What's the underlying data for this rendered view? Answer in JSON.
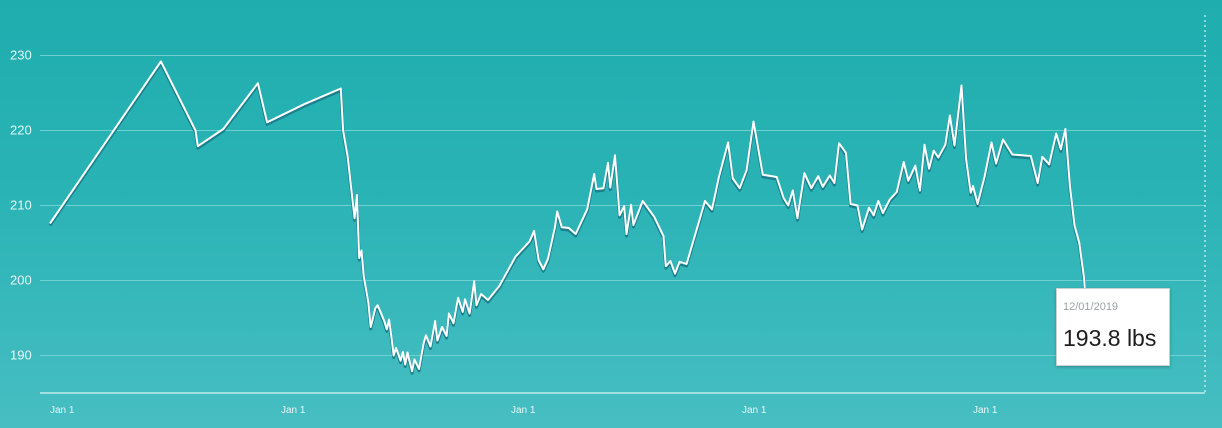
{
  "colors": {
    "background_top": "#1fadae",
    "background_bottom": "#47bec2",
    "line": "#ffffff",
    "min_band": "#1b7f8e",
    "grid": "#6fd0d2"
  },
  "tooltip": {
    "date": "12/01/2019",
    "value": "193.8 lbs"
  },
  "chart_data": {
    "type": "line",
    "title": "",
    "xlabel": "",
    "ylabel": "",
    "unit": "lbs",
    "ylim": [
      186,
      233
    ],
    "yticks": [
      190,
      200,
      210,
      220,
      230
    ],
    "x_tick_labels": [
      "Jan 1",
      "Jan 1",
      "Jan 1",
      "Jan 1",
      "Jan 1"
    ],
    "x_ticks": [
      2015,
      2016,
      2017,
      2018,
      2019
    ],
    "xlim": [
      2015,
      2019.95
    ],
    "grid": true,
    "legend": "none",
    "highlight": {
      "date": "12/01/2019",
      "value": 193.8
    },
    "series": [
      {
        "values": [
          [
            2015.0,
            207.6
          ],
          [
            2015.48,
            229.2
          ],
          [
            2015.63,
            220.0
          ],
          [
            2015.64,
            217.9
          ],
          [
            2015.75,
            220.2
          ],
          [
            2015.9,
            226.3
          ],
          [
            2015.94,
            221.1
          ],
          [
            2016.1,
            223.5
          ],
          [
            2016.26,
            225.6
          ],
          [
            2016.27,
            220.0
          ],
          [
            2016.29,
            216.5
          ],
          [
            2016.31,
            211.0
          ],
          [
            2016.32,
            208.3
          ],
          [
            2016.33,
            211.4
          ],
          [
            2016.34,
            203.0
          ],
          [
            2016.35,
            204.0
          ],
          [
            2016.36,
            200.5
          ],
          [
            2016.37,
            198.8
          ],
          [
            2016.38,
            197.0
          ],
          [
            2016.39,
            193.8
          ],
          [
            2016.4,
            195.0
          ],
          [
            2016.41,
            196.3
          ],
          [
            2016.42,
            196.7
          ],
          [
            2016.43,
            196.0
          ],
          [
            2016.45,
            194.5
          ],
          [
            2016.46,
            193.5
          ],
          [
            2016.47,
            194.8
          ],
          [
            2016.48,
            192.5
          ],
          [
            2016.49,
            190.0
          ],
          [
            2016.5,
            191.0
          ],
          [
            2016.52,
            189.3
          ],
          [
            2016.53,
            190.5
          ],
          [
            2016.54,
            188.8
          ],
          [
            2016.55,
            190.4
          ],
          [
            2016.56,
            189.1
          ],
          [
            2016.57,
            187.9
          ],
          [
            2016.58,
            189.5
          ],
          [
            2016.6,
            188.2
          ],
          [
            2016.62,
            191.6
          ],
          [
            2016.63,
            192.7
          ],
          [
            2016.65,
            191.2
          ],
          [
            2016.67,
            194.6
          ],
          [
            2016.68,
            192.0
          ],
          [
            2016.7,
            193.8
          ],
          [
            2016.72,
            192.6
          ],
          [
            2016.73,
            195.6
          ],
          [
            2016.75,
            194.3
          ],
          [
            2016.77,
            197.7
          ],
          [
            2016.79,
            195.8
          ],
          [
            2016.8,
            197.5
          ],
          [
            2016.82,
            195.6
          ],
          [
            2016.84,
            199.9
          ],
          [
            2016.85,
            196.7
          ],
          [
            2016.87,
            198.2
          ],
          [
            2016.9,
            197.4
          ],
          [
            2016.95,
            199.3
          ],
          [
            2017.02,
            203.2
          ],
          [
            2017.08,
            205.2
          ],
          [
            2017.1,
            206.6
          ],
          [
            2017.12,
            202.7
          ],
          [
            2017.14,
            201.5
          ],
          [
            2017.16,
            202.9
          ],
          [
            2017.19,
            207.1
          ],
          [
            2017.2,
            209.2
          ],
          [
            2017.22,
            207.1
          ],
          [
            2017.25,
            207.0
          ],
          [
            2017.28,
            206.2
          ],
          [
            2017.33,
            209.5
          ],
          [
            2017.36,
            214.2
          ],
          [
            2017.37,
            212.2
          ],
          [
            2017.4,
            212.3
          ],
          [
            2017.42,
            215.7
          ],
          [
            2017.43,
            212.4
          ],
          [
            2017.45,
            216.7
          ],
          [
            2017.47,
            208.7
          ],
          [
            2017.49,
            209.9
          ],
          [
            2017.5,
            206.2
          ],
          [
            2017.52,
            210.1
          ],
          [
            2017.53,
            207.4
          ],
          [
            2017.57,
            210.6
          ],
          [
            2017.62,
            208.5
          ],
          [
            2017.66,
            205.9
          ],
          [
            2017.67,
            201.9
          ],
          [
            2017.69,
            202.6
          ],
          [
            2017.71,
            200.9
          ],
          [
            2017.73,
            202.5
          ],
          [
            2017.76,
            202.2
          ],
          [
            2017.84,
            210.6
          ],
          [
            2017.87,
            209.5
          ],
          [
            2017.9,
            213.8
          ],
          [
            2017.94,
            218.4
          ],
          [
            2017.96,
            213.6
          ],
          [
            2017.99,
            212.3
          ],
          [
            2018.02,
            214.7
          ],
          [
            2018.05,
            221.2
          ],
          [
            2018.09,
            214.1
          ],
          [
            2018.15,
            213.8
          ],
          [
            2018.18,
            211.0
          ],
          [
            2018.2,
            210.0
          ],
          [
            2018.22,
            212.0
          ],
          [
            2018.24,
            208.3
          ],
          [
            2018.27,
            214.3
          ],
          [
            2018.3,
            212.3
          ],
          [
            2018.33,
            213.9
          ],
          [
            2018.35,
            212.5
          ],
          [
            2018.38,
            214.0
          ],
          [
            2018.4,
            213.0
          ],
          [
            2018.42,
            218.3
          ],
          [
            2018.45,
            217.0
          ],
          [
            2018.47,
            210.2
          ],
          [
            2018.5,
            210.0
          ],
          [
            2018.52,
            206.8
          ],
          [
            2018.55,
            209.7
          ],
          [
            2018.57,
            208.7
          ],
          [
            2018.59,
            210.6
          ],
          [
            2018.61,
            209.0
          ],
          [
            2018.64,
            210.8
          ],
          [
            2018.67,
            211.8
          ],
          [
            2018.7,
            215.8
          ],
          [
            2018.72,
            213.3
          ],
          [
            2018.75,
            215.3
          ],
          [
            2018.77,
            212.0
          ],
          [
            2018.79,
            218.1
          ],
          [
            2018.81,
            214.9
          ],
          [
            2018.83,
            217.3
          ],
          [
            2018.85,
            216.4
          ],
          [
            2018.88,
            218.1
          ],
          [
            2018.9,
            222.0
          ],
          [
            2018.92,
            218.0
          ],
          [
            2018.95,
            226.0
          ],
          [
            2018.97,
            216.2
          ],
          [
            2018.99,
            211.7
          ],
          [
            2019.0,
            212.6
          ],
          [
            2019.02,
            210.2
          ],
          [
            2019.05,
            213.8
          ],
          [
            2019.08,
            218.4
          ],
          [
            2019.1,
            215.6
          ],
          [
            2019.13,
            218.8
          ],
          [
            2019.17,
            216.8
          ],
          [
            2019.25,
            216.6
          ],
          [
            2019.28,
            213.0
          ],
          [
            2019.3,
            216.5
          ],
          [
            2019.33,
            215.5
          ],
          [
            2019.36,
            219.6
          ],
          [
            2019.38,
            217.5
          ],
          [
            2019.4,
            220.2
          ],
          [
            2019.42,
            212.5
          ],
          [
            2019.44,
            207.3
          ],
          [
            2019.46,
            205.0
          ],
          [
            2019.48,
            200.5
          ],
          [
            2019.49,
            196.7
          ],
          [
            2019.5,
            193.4
          ],
          [
            2019.51,
            195.1
          ],
          [
            2019.52,
            189.9
          ],
          [
            2019.53,
            194.4
          ],
          [
            2019.54,
            191.9
          ],
          [
            2019.55,
            194.6
          ],
          [
            2019.56,
            193.8
          ]
        ]
      }
    ]
  }
}
